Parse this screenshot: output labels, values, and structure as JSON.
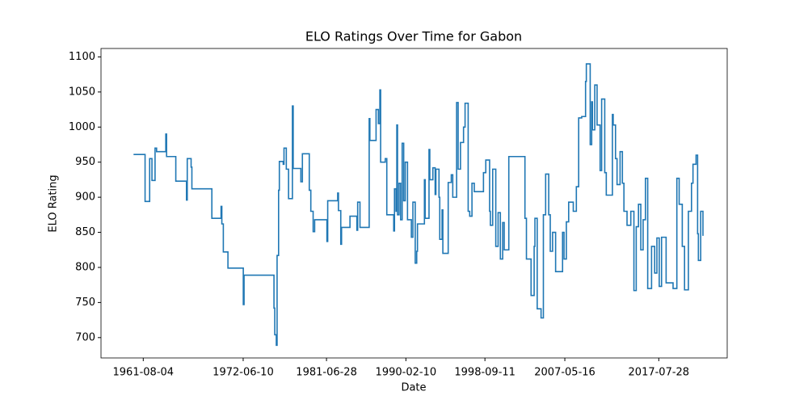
{
  "chart_data": {
    "type": "line",
    "title": "ELO Ratings Over Time for Gabon",
    "x_label": "Date",
    "y_label": "ELO Rating",
    "drawstyle": "steps-post",
    "xlim": [
      "1957-01-01",
      "2025-01-01"
    ],
    "xticks": [
      "1961-08-04",
      "1972-06-10",
      "1981-06-28",
      "1990-02-10",
      "1998-09-11",
      "2007-05-16",
      "2017-07-28"
    ],
    "ylim": [
      671,
      1112
    ],
    "yticks": [
      700,
      750,
      800,
      850,
      900,
      950,
      1000,
      1050,
      1100
    ],
    "x": [
      "1960-07-15",
      "1961-10-15",
      "1962-04-15",
      "1962-07-15",
      "1962-11-15",
      "1963-01-15",
      "1964-01-15",
      "1964-02-15",
      "1965-02-15",
      "1966-04-15",
      "1966-05-15",
      "1966-10-15",
      "1966-11-15",
      "1969-01-15",
      "1970-01-15",
      "1970-02-15",
      "1970-04-15",
      "1970-10-15",
      "1972-06-15",
      "1972-07-15",
      "1975-10-15",
      "1975-11-15",
      "1976-01-15",
      "1976-02-15",
      "1976-04-15",
      "1976-05-15",
      "1976-10-15",
      "1976-11-15",
      "1977-02-15",
      "1977-05-15",
      "1977-10-15",
      "1977-11-15",
      "1978-09-15",
      "1978-11-15",
      "1979-08-15",
      "1979-10-15",
      "1980-01-15",
      "1980-03-15",
      "1981-07-15",
      "1981-08-15",
      "1982-09-15",
      "1982-10-15",
      "1983-01-15",
      "1983-02-15",
      "1984-01-15",
      "1984-10-15",
      "1984-11-15",
      "1985-02-15",
      "1986-02-15",
      "1986-03-15",
      "1986-11-15",
      "1987-02-15",
      "1987-04-15",
      "1987-05-15",
      "1987-11-15",
      "1988-01-15",
      "1988-10-15",
      "1988-11-15",
      "1989-01-15",
      "1989-02-15",
      "1989-03-15",
      "1989-05-15",
      "1989-07-15",
      "1989-09-15",
      "1989-11-15",
      "1990-01-15",
      "1990-04-15",
      "1990-09-15",
      "1990-11-15",
      "1991-02-15",
      "1991-04-15",
      "1991-05-15",
      "1992-02-15",
      "1992-03-15",
      "1992-08-15",
      "1992-09-15",
      "1993-01-15",
      "1993-04-15",
      "1993-05-15",
      "1993-09-15",
      "1993-10-15",
      "1994-01-15",
      "1994-02-15",
      "1994-09-15",
      "1995-01-15",
      "1995-03-15",
      "1995-08-15",
      "1995-10-15",
      "1996-01-15",
      "1996-05-15",
      "1996-07-15",
      "1996-11-15",
      "1997-01-15",
      "1997-04-15",
      "1997-07-15",
      "1998-07-15",
      "1998-10-15",
      "1999-03-15",
      "1999-04-15",
      "1999-07-15",
      "1999-11-15",
      "2000-02-15",
      "2000-05-15",
      "2000-08-15",
      "2000-10-15",
      "2001-04-15",
      "2003-01-15",
      "2003-03-15",
      "2003-09-15",
      "2004-01-15",
      "2004-02-15",
      "2004-05-15",
      "2004-10-15",
      "2005-01-15",
      "2005-04-15",
      "2005-08-15",
      "2005-10-15",
      "2006-01-15",
      "2006-05-15",
      "2007-02-15",
      "2007-04-15",
      "2007-07-15",
      "2007-10-15",
      "2008-04-15",
      "2008-08-15",
      "2008-11-15",
      "2009-03-15",
      "2009-08-15",
      "2009-09-15",
      "2010-02-15",
      "2010-04-15",
      "2010-05-15",
      "2010-08-15",
      "2010-11-15",
      "2011-03-15",
      "2011-05-15",
      "2011-09-15",
      "2011-11-15",
      "2012-07-15",
      "2012-08-15",
      "2012-11-15",
      "2013-01-15",
      "2013-05-15",
      "2013-08-15",
      "2013-10-15",
      "2014-02-15",
      "2014-07-15",
      "2014-11-15",
      "2015-02-15",
      "2015-05-15",
      "2015-08-15",
      "2015-11-15",
      "2016-02-15",
      "2016-05-15",
      "2016-10-15",
      "2017-02-15",
      "2017-05-15",
      "2017-08-15",
      "2017-11-15",
      "2018-05-15",
      "2019-02-15",
      "2019-07-15",
      "2019-10-15",
      "2020-02-15",
      "2020-05-15",
      "2020-10-15",
      "2021-02-15",
      "2021-04-15",
      "2021-08-15",
      "2021-10-15",
      "2021-11-15",
      "2022-02-15",
      "2022-05-15"
    ],
    "series": [
      {
        "name": "Gabon",
        "color": "#1f77b4",
        "values": [
          961,
          894,
          955,
          924,
          970,
          965,
          990,
          958,
          923,
          896,
          955,
          943,
          912,
          870,
          887,
          862,
          822,
          799,
          747,
          789,
          742,
          704,
          689,
          817,
          910,
          951,
          947,
          970,
          940,
          898,
          1030,
          941,
          922,
          962,
          910,
          880,
          851,
          868,
          837,
          895,
          906,
          881,
          833,
          857,
          873,
          853,
          893,
          857,
          1012,
          981,
          1025,
          1005,
          1053,
          950,
          955,
          875,
          852,
          912,
          880,
          1003,
          875,
          920,
          868,
          977,
          895,
          950,
          868,
          843,
          893,
          806,
          823,
          862,
          925,
          870,
          968,
          925,
          942,
          904,
          940,
          900,
          840,
          882,
          820,
          921,
          932,
          900,
          1035,
          940,
          978,
          1000,
          1034,
          880,
          873,
          920,
          908,
          935,
          953,
          880,
          860,
          940,
          830,
          878,
          812,
          864,
          825,
          958,
          870,
          812,
          760,
          830,
          870,
          741,
          728,
          875,
          933,
          875,
          823,
          850,
          794,
          850,
          812,
          865,
          893,
          880,
          915,
          1013,
          1015,
          1065,
          1090,
          975,
          1036,
          996,
          1060,
          1003,
          938,
          1040,
          935,
          903,
          1018,
          1003,
          955,
          918,
          965,
          920,
          880,
          860,
          880,
          767,
          858,
          890,
          825,
          868,
          927,
          770,
          830,
          792,
          842,
          773,
          843,
          778,
          770,
          927,
          890,
          830,
          768,
          880,
          920,
          947,
          960,
          848,
          810,
          880,
          845
        ]
      }
    ]
  }
}
